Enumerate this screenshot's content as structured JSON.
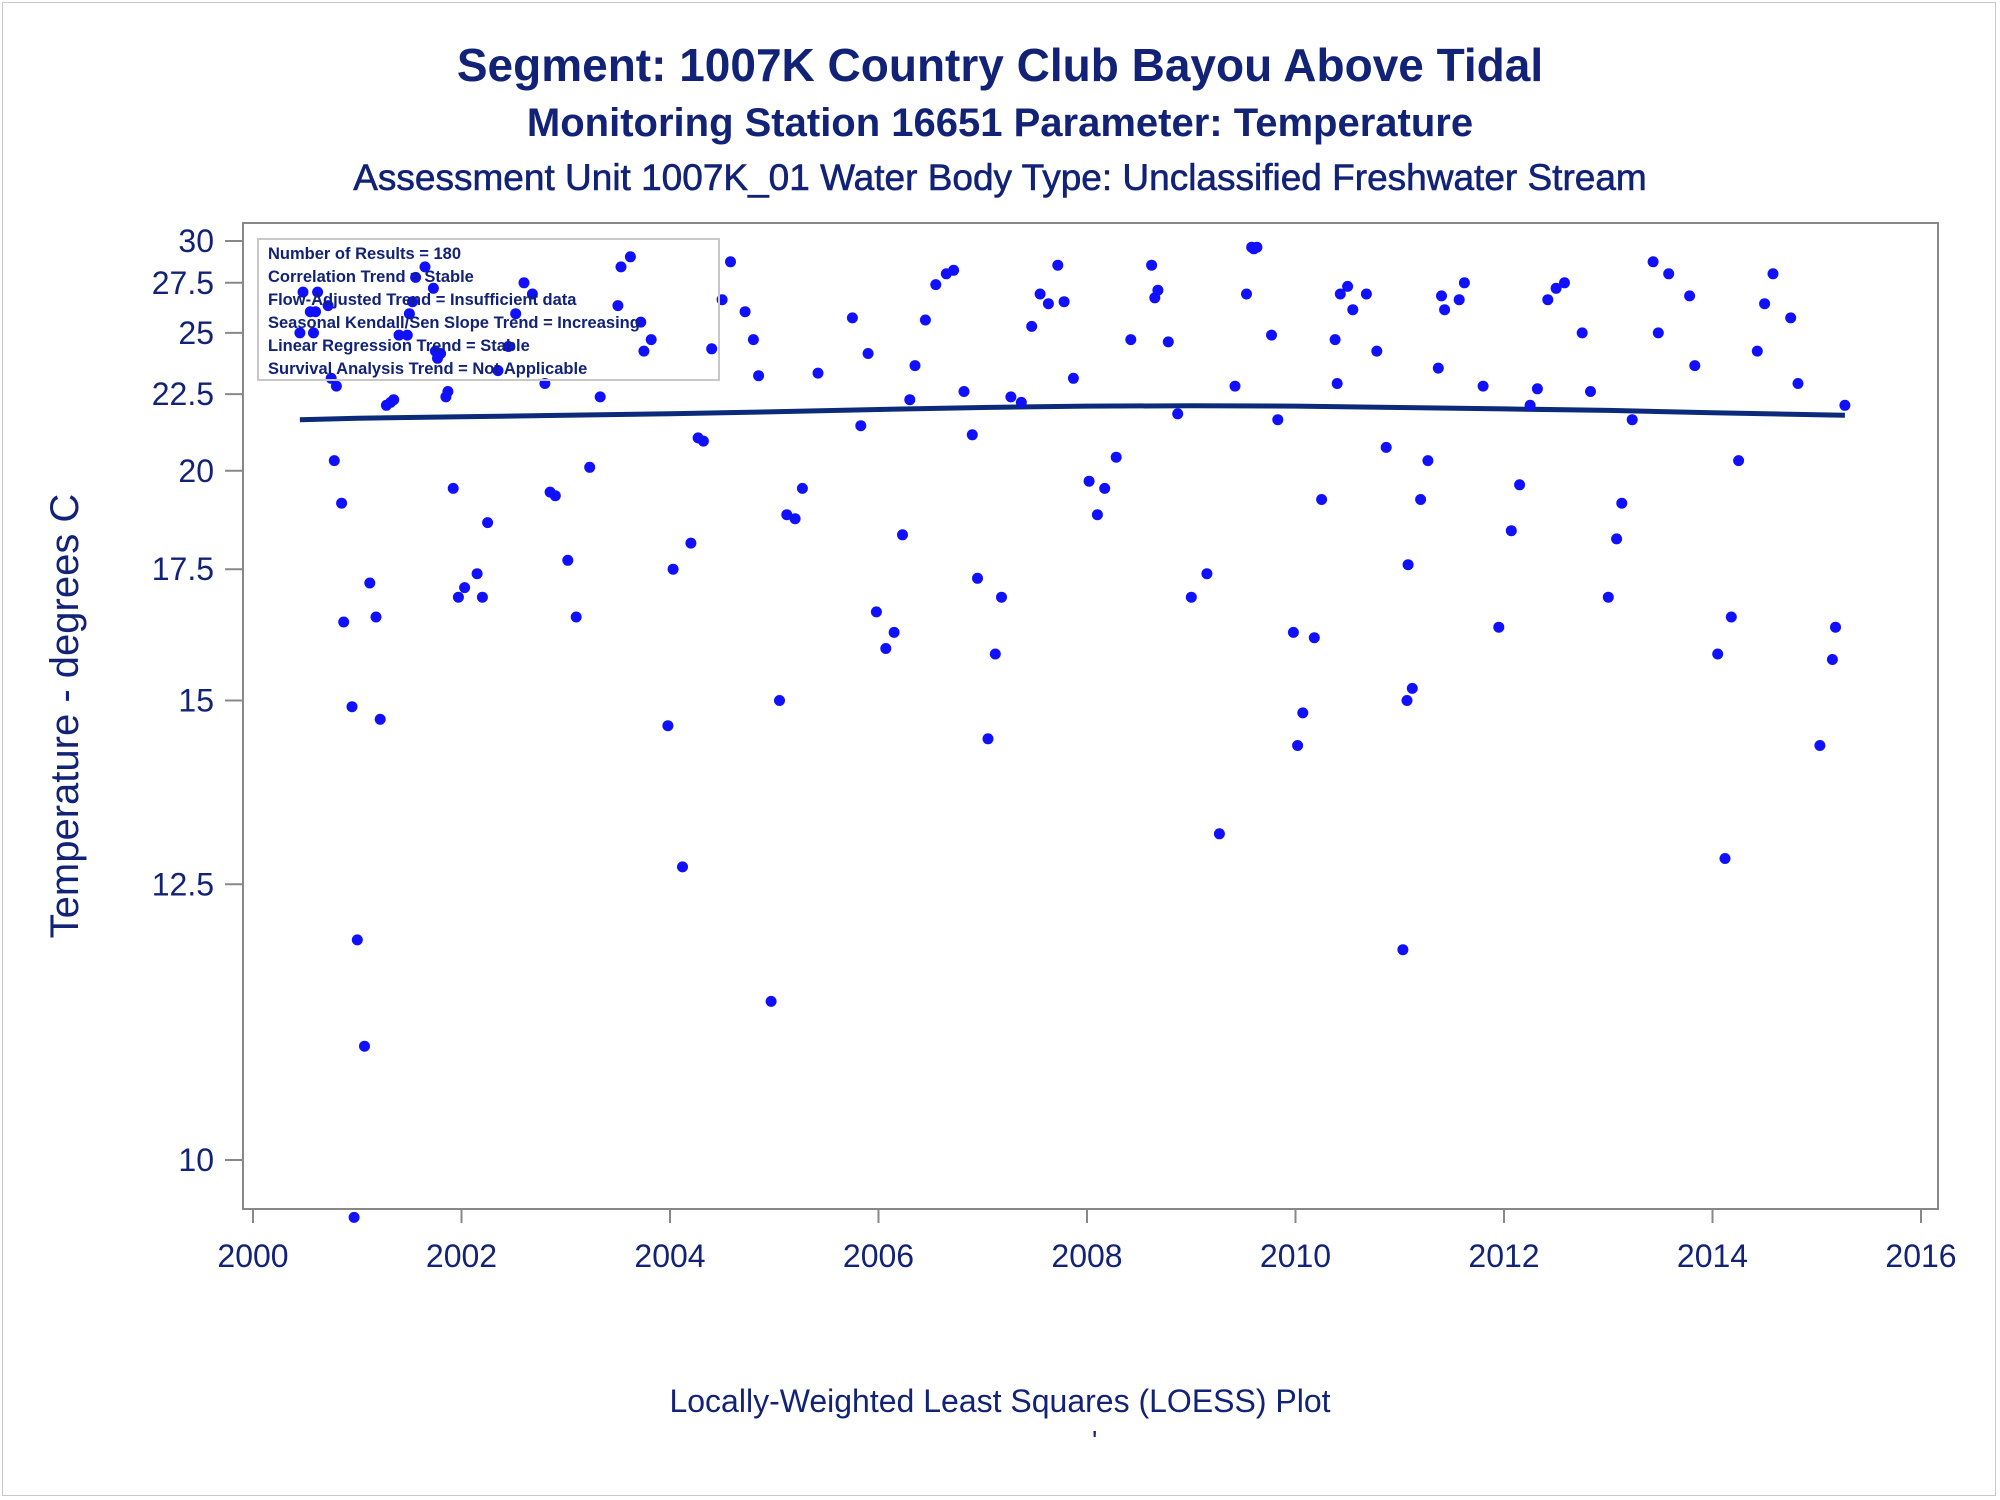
{
  "title": "Segment: 1007K  Country Club Bayou Above Tidal",
  "subtitle": "Monitoring Station 16651 Parameter: Temperature",
  "subtitle2": "Assessment Unit 1007K_01   Water Body Type: Unclassified Freshwater Stream",
  "footnote": "Locally-Weighted Least Squares (LOESS) Plot",
  "footnote_mark": "'",
  "colors": {
    "text": "#112277",
    "points": "#1010ff",
    "line": "#0b2a7a",
    "axis": "#888888"
  },
  "info_box": [
    "Number of Results = 180",
    "Correlation Trend = Stable",
    "Flow-Adjusted Trend = Insufficient data",
    "Seasonal Kendall/Sen Slope Trend = Increasing",
    "Linear Regression Trend = Stable",
    "Survival Analysis Trend = Not Applicable"
  ],
  "chart_data": {
    "type": "scatter",
    "title": "Segment: 1007K  Country Club Bayou Above Tidal",
    "xlabel": "",
    "ylabel": "Temperature - degrees C",
    "y_scale": "reciprocal",
    "xlim": [
      2000,
      2016
    ],
    "ylim": [
      9.5,
      30.3
    ],
    "x_ticks": [
      "2000",
      "2002",
      "2004",
      "2006",
      "2008",
      "2010",
      "2012",
      "2014",
      "2016"
    ],
    "y_ticks": [
      "10",
      "12.5",
      "15",
      "17.5",
      "20",
      "22.5",
      "25",
      "27.5",
      "30"
    ],
    "grid": false,
    "legend": "none",
    "points": [
      [
        2000.45,
        25.0
      ],
      [
        2000.48,
        27.0
      ],
      [
        2000.55,
        26.0
      ],
      [
        2000.58,
        25.0
      ],
      [
        2000.6,
        26.0
      ],
      [
        2000.62,
        27.0
      ],
      [
        2000.72,
        26.3
      ],
      [
        2000.75,
        23.1
      ],
      [
        2000.78,
        20.3
      ],
      [
        2000.8,
        22.8
      ],
      [
        2000.85,
        19.1
      ],
      [
        2000.87,
        16.4
      ],
      [
        2000.95,
        14.9
      ],
      [
        2000.97,
        9.6
      ],
      [
        2001.0,
        11.9
      ],
      [
        2001.07,
        10.9
      ],
      [
        2001.12,
        17.2
      ],
      [
        2001.18,
        16.5
      ],
      [
        2001.22,
        14.7
      ],
      [
        2001.28,
        22.1
      ],
      [
        2001.32,
        22.2
      ],
      [
        2001.35,
        22.3
      ],
      [
        2001.4,
        24.9
      ],
      [
        2001.48,
        24.9
      ],
      [
        2001.5,
        25.9
      ],
      [
        2001.53,
        26.5
      ],
      [
        2001.56,
        27.8
      ],
      [
        2001.65,
        28.4
      ],
      [
        2001.73,
        27.2
      ],
      [
        2001.75,
        24.2
      ],
      [
        2001.77,
        23.9
      ],
      [
        2001.8,
        24.1
      ],
      [
        2001.85,
        22.4
      ],
      [
        2001.87,
        22.6
      ],
      [
        2001.92,
        19.5
      ],
      [
        2001.97,
        16.9
      ],
      [
        2002.03,
        17.1
      ],
      [
        2002.15,
        17.4
      ],
      [
        2002.2,
        16.9
      ],
      [
        2002.25,
        18.6
      ],
      [
        2002.35,
        23.4
      ],
      [
        2002.45,
        24.4
      ],
      [
        2002.52,
        25.9
      ],
      [
        2002.6,
        27.5
      ],
      [
        2002.68,
        26.9
      ],
      [
        2002.8,
        22.9
      ],
      [
        2002.85,
        19.4
      ],
      [
        2002.9,
        19.3
      ],
      [
        2003.02,
        17.7
      ],
      [
        2003.1,
        16.5
      ],
      [
        2003.23,
        20.1
      ],
      [
        2003.33,
        22.4
      ],
      [
        2003.5,
        26.3
      ],
      [
        2003.53,
        28.4
      ],
      [
        2003.62,
        29.0
      ],
      [
        2003.72,
        25.5
      ],
      [
        2003.75,
        24.2
      ],
      [
        2003.82,
        24.7
      ],
      [
        2003.98,
        14.6
      ],
      [
        2004.03,
        17.5
      ],
      [
        2004.12,
        12.7
      ],
      [
        2004.2,
        18.1
      ],
      [
        2004.27,
        21.0
      ],
      [
        2004.32,
        20.9
      ],
      [
        2004.4,
        24.3
      ],
      [
        2004.5,
        26.6
      ],
      [
        2004.58,
        28.7
      ],
      [
        2004.72,
        26.0
      ],
      [
        2004.8,
        24.7
      ],
      [
        2004.85,
        23.2
      ],
      [
        2004.97,
        11.3
      ],
      [
        2005.05,
        15.0
      ],
      [
        2005.12,
        18.8
      ],
      [
        2005.2,
        18.7
      ],
      [
        2005.27,
        19.5
      ],
      [
        2005.42,
        23.3
      ],
      [
        2005.75,
        25.7
      ],
      [
        2005.83,
        21.4
      ],
      [
        2005.9,
        24.1
      ],
      [
        2005.98,
        16.6
      ],
      [
        2006.07,
        15.9
      ],
      [
        2006.15,
        16.2
      ],
      [
        2006.23,
        18.3
      ],
      [
        2006.3,
        22.3
      ],
      [
        2006.35,
        23.6
      ],
      [
        2006.45,
        25.6
      ],
      [
        2006.55,
        27.4
      ],
      [
        2006.65,
        28.0
      ],
      [
        2006.72,
        28.2
      ],
      [
        2006.82,
        22.6
      ],
      [
        2006.9,
        21.1
      ],
      [
        2006.95,
        17.3
      ],
      [
        2007.05,
        14.4
      ],
      [
        2007.12,
        15.8
      ],
      [
        2007.18,
        16.9
      ],
      [
        2007.27,
        22.4
      ],
      [
        2007.37,
        22.2
      ],
      [
        2007.47,
        25.3
      ],
      [
        2007.55,
        26.9
      ],
      [
        2007.63,
        26.4
      ],
      [
        2007.72,
        28.5
      ],
      [
        2007.78,
        26.5
      ],
      [
        2007.87,
        23.1
      ],
      [
        2008.02,
        19.7
      ],
      [
        2008.1,
        18.8
      ],
      [
        2008.17,
        19.5
      ],
      [
        2008.28,
        20.4
      ],
      [
        2008.42,
        24.7
      ],
      [
        2008.62,
        28.5
      ],
      [
        2008.65,
        26.7
      ],
      [
        2008.68,
        27.1
      ],
      [
        2008.78,
        24.6
      ],
      [
        2008.87,
        21.8
      ],
      [
        2009.0,
        16.9
      ],
      [
        2009.15,
        17.4
      ],
      [
        2009.27,
        13.1
      ],
      [
        2009.42,
        22.8
      ],
      [
        2009.53,
        26.9
      ],
      [
        2009.58,
        29.6
      ],
      [
        2009.6,
        29.5
      ],
      [
        2009.63,
        29.6
      ],
      [
        2009.77,
        24.9
      ],
      [
        2009.83,
        21.6
      ],
      [
        2009.98,
        16.2
      ],
      [
        2010.02,
        14.3
      ],
      [
        2010.07,
        14.8
      ],
      [
        2010.18,
        16.1
      ],
      [
        2010.25,
        19.2
      ],
      [
        2010.38,
        24.7
      ],
      [
        2010.4,
        22.9
      ],
      [
        2010.43,
        26.9
      ],
      [
        2010.5,
        27.3
      ],
      [
        2010.55,
        26.1
      ],
      [
        2010.68,
        26.9
      ],
      [
        2010.78,
        24.2
      ],
      [
        2010.87,
        20.7
      ],
      [
        2011.03,
        11.8
      ],
      [
        2011.07,
        15.0
      ],
      [
        2011.08,
        17.6
      ],
      [
        2011.12,
        15.2
      ],
      [
        2011.2,
        19.2
      ],
      [
        2011.27,
        20.3
      ],
      [
        2011.37,
        23.5
      ],
      [
        2011.4,
        26.8
      ],
      [
        2011.43,
        26.1
      ],
      [
        2011.57,
        26.6
      ],
      [
        2011.62,
        27.5
      ],
      [
        2011.8,
        22.8
      ],
      [
        2011.95,
        16.3
      ],
      [
        2012.07,
        18.4
      ],
      [
        2012.15,
        19.6
      ],
      [
        2012.25,
        22.1
      ],
      [
        2012.32,
        22.7
      ],
      [
        2012.42,
        26.6
      ],
      [
        2012.5,
        27.2
      ],
      [
        2012.58,
        27.5
      ],
      [
        2012.75,
        25.0
      ],
      [
        2012.83,
        22.6
      ],
      [
        2013.0,
        16.9
      ],
      [
        2013.08,
        18.2
      ],
      [
        2013.13,
        19.1
      ],
      [
        2013.23,
        21.6
      ],
      [
        2013.43,
        28.7
      ],
      [
        2013.48,
        25.0
      ],
      [
        2013.58,
        28.0
      ],
      [
        2013.78,
        26.8
      ],
      [
        2013.83,
        23.6
      ],
      [
        2014.05,
        15.8
      ],
      [
        2014.12,
        12.8
      ],
      [
        2014.18,
        16.5
      ],
      [
        2014.25,
        20.3
      ],
      [
        2014.43,
        24.2
      ],
      [
        2014.5,
        26.4
      ],
      [
        2014.58,
        28.0
      ],
      [
        2014.75,
        25.7
      ],
      [
        2014.82,
        22.9
      ],
      [
        2015.03,
        14.3
      ],
      [
        2015.15,
        15.7
      ],
      [
        2015.18,
        16.3
      ],
      [
        2015.27,
        22.1
      ]
    ],
    "loess_line": [
      [
        2000.45,
        21.6
      ],
      [
        2001.0,
        21.65
      ],
      [
        2002.0,
        21.7
      ],
      [
        2003.0,
        21.75
      ],
      [
        2004.0,
        21.8
      ],
      [
        2005.0,
        21.87
      ],
      [
        2006.0,
        21.95
      ],
      [
        2007.0,
        22.02
      ],
      [
        2008.0,
        22.07
      ],
      [
        2009.0,
        22.08
      ],
      [
        2010.0,
        22.07
      ],
      [
        2011.0,
        22.02
      ],
      [
        2012.0,
        21.97
      ],
      [
        2013.0,
        21.92
      ],
      [
        2014.0,
        21.84
      ],
      [
        2015.0,
        21.77
      ],
      [
        2015.27,
        21.75
      ]
    ]
  }
}
